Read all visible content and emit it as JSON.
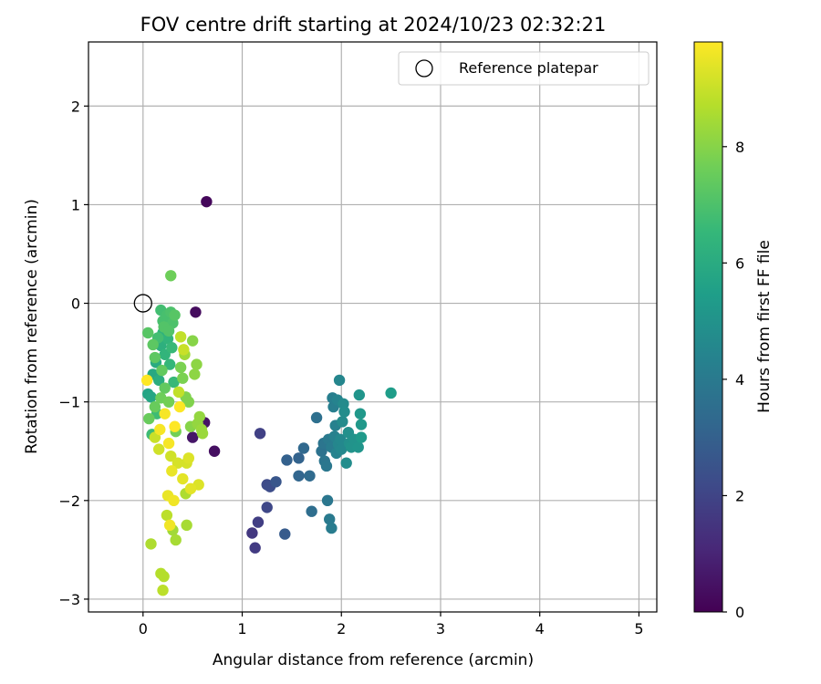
{
  "chart_data": {
    "type": "scatter",
    "title": "FOV centre drift starting at 2024/10/23 02:32:21",
    "xlabel": "Angular distance from reference (arcmin)",
    "ylabel": "Rotation from reference (arcmin)",
    "xlim": [
      -0.55,
      5.18
    ],
    "ylim": [
      -3.13,
      2.65
    ],
    "xticks": [
      0,
      1,
      2,
      3,
      4,
      5
    ],
    "yticks": [
      -3,
      -2,
      -1,
      0,
      1,
      2
    ],
    "grid": true,
    "legend": {
      "placement": "upper right",
      "entries": [
        "Reference platepar"
      ]
    },
    "reference_point": {
      "x": 0,
      "y": 0,
      "label": "Reference platepar",
      "marker": "open-circle"
    },
    "colorbar": {
      "label": "Hours from first FF file",
      "colormap": "viridis",
      "range": [
        0,
        9.8
      ],
      "ticks": [
        0,
        2,
        4,
        6,
        8
      ]
    },
    "series": [
      {
        "points": [
          [
            0.64,
            1.03,
            0.2
          ],
          [
            0.53,
            -0.09,
            0.3
          ],
          [
            0.72,
            -1.5,
            0.4
          ],
          [
            0.62,
            -1.21,
            0.5
          ],
          [
            0.5,
            -1.36,
            0.6
          ],
          [
            1.1,
            -2.33,
            1.6
          ],
          [
            1.13,
            -2.48,
            1.7
          ],
          [
            1.16,
            -2.22,
            1.8
          ],
          [
            1.18,
            -1.32,
            1.9
          ],
          [
            1.25,
            -2.07,
            2.1
          ],
          [
            1.25,
            -1.84,
            2.2
          ],
          [
            1.28,
            -1.86,
            2.3
          ],
          [
            1.34,
            -1.81,
            2.6
          ],
          [
            1.43,
            -2.34,
            2.8
          ],
          [
            1.45,
            -1.59,
            3.0
          ],
          [
            1.57,
            -1.57,
            3.1
          ],
          [
            1.57,
            -1.75,
            3.2
          ],
          [
            1.62,
            -1.47,
            3.3
          ],
          [
            1.68,
            -1.75,
            3.4
          ],
          [
            1.7,
            -2.11,
            3.5
          ],
          [
            1.75,
            -1.16,
            3.6
          ],
          [
            1.8,
            -1.5,
            3.7
          ],
          [
            1.82,
            -1.42,
            3.8
          ],
          [
            1.83,
            -1.6,
            3.8
          ],
          [
            1.85,
            -1.65,
            3.9
          ],
          [
            1.86,
            -2.0,
            3.9
          ],
          [
            1.87,
            -1.38,
            4.0
          ],
          [
            1.88,
            -2.19,
            4.0
          ],
          [
            1.9,
            -1.46,
            4.1
          ],
          [
            1.9,
            -2.28,
            4.1
          ],
          [
            1.91,
            -0.96,
            4.2
          ],
          [
            1.92,
            -1.05,
            4.2
          ],
          [
            1.93,
            -1.35,
            4.3
          ],
          [
            1.94,
            -1.24,
            4.3
          ],
          [
            1.95,
            -1.52,
            4.4
          ],
          [
            1.96,
            -0.98,
            4.4
          ],
          [
            1.97,
            -1.43,
            4.5
          ],
          [
            1.98,
            -0.78,
            4.5
          ],
          [
            1.99,
            -1.38,
            4.6
          ],
          [
            2.0,
            -1.48,
            4.6
          ],
          [
            2.01,
            -1.2,
            4.7
          ],
          [
            2.02,
            -1.02,
            4.7
          ],
          [
            2.03,
            -1.1,
            4.8
          ],
          [
            2.05,
            -1.62,
            4.8
          ],
          [
            2.07,
            -1.31,
            4.9
          ],
          [
            2.08,
            -1.42,
            4.9
          ],
          [
            2.1,
            -1.46,
            5.0
          ],
          [
            2.13,
            -1.38,
            5.0
          ],
          [
            2.17,
            -1.46,
            5.1
          ],
          [
            2.18,
            -0.93,
            5.1
          ],
          [
            2.19,
            -1.12,
            5.2
          ],
          [
            2.2,
            -1.23,
            5.2
          ],
          [
            2.2,
            -1.36,
            5.3
          ],
          [
            2.5,
            -0.91,
            5.4
          ],
          [
            0.05,
            -0.92,
            5.7
          ],
          [
            0.08,
            -0.95,
            5.8
          ],
          [
            0.1,
            -0.72,
            5.9
          ],
          [
            0.13,
            -0.6,
            6.0
          ],
          [
            0.16,
            -0.78,
            6.1
          ],
          [
            0.18,
            -0.43,
            6.2
          ],
          [
            0.2,
            -0.3,
            6.3
          ],
          [
            0.22,
            -0.52,
            6.4
          ],
          [
            0.25,
            -0.36,
            6.4
          ],
          [
            0.27,
            -0.62,
            6.5
          ],
          [
            0.29,
            -0.45,
            6.6
          ],
          [
            0.31,
            -0.8,
            6.6
          ],
          [
            0.14,
            -1.12,
            6.7
          ],
          [
            0.09,
            -1.33,
            6.7
          ],
          [
            0.15,
            -0.35,
            6.8
          ],
          [
            0.18,
            -0.07,
            6.8
          ],
          [
            0.2,
            -0.18,
            6.9
          ],
          [
            0.24,
            -0.12,
            6.9
          ],
          [
            0.28,
            -0.09,
            7.0
          ],
          [
            0.3,
            -0.2,
            7.0
          ],
          [
            0.21,
            -0.24,
            7.1
          ],
          [
            0.26,
            -0.28,
            7.1
          ],
          [
            0.32,
            -0.12,
            7.2
          ],
          [
            0.05,
            -0.3,
            7.2
          ],
          [
            0.1,
            -0.42,
            7.3
          ],
          [
            0.12,
            -0.55,
            7.3
          ],
          [
            0.19,
            -0.68,
            7.4
          ],
          [
            0.22,
            -0.86,
            7.4
          ],
          [
            0.06,
            -1.17,
            7.5
          ],
          [
            0.12,
            -1.05,
            7.5
          ],
          [
            0.28,
            0.28,
            7.6
          ],
          [
            0.18,
            -0.96,
            7.6
          ],
          [
            0.26,
            -1.0,
            7.7
          ],
          [
            0.33,
            -1.3,
            7.7
          ],
          [
            0.38,
            -0.65,
            7.8
          ],
          [
            0.4,
            -0.76,
            7.8
          ],
          [
            0.43,
            -0.95,
            7.9
          ],
          [
            0.46,
            -1.0,
            7.9
          ],
          [
            0.48,
            -1.25,
            8.0
          ],
          [
            0.5,
            -0.38,
            8.0
          ],
          [
            0.52,
            -0.72,
            8.1
          ],
          [
            0.54,
            -0.62,
            8.1
          ],
          [
            0.55,
            -1.22,
            8.2
          ],
          [
            0.57,
            -1.15,
            8.2
          ],
          [
            0.59,
            -1.28,
            8.3
          ],
          [
            0.6,
            -1.32,
            8.3
          ],
          [
            0.42,
            -0.52,
            8.4
          ],
          [
            0.3,
            -2.3,
            8.4
          ],
          [
            0.33,
            -2.4,
            8.5
          ],
          [
            0.44,
            -2.25,
            8.5
          ],
          [
            0.43,
            -1.93,
            8.6
          ],
          [
            0.08,
            -2.44,
            8.6
          ],
          [
            0.21,
            -2.77,
            8.7
          ],
          [
            0.18,
            -2.74,
            8.7
          ],
          [
            0.2,
            -2.91,
            8.8
          ],
          [
            0.24,
            -2.15,
            8.8
          ],
          [
            0.36,
            -0.9,
            8.9
          ],
          [
            0.38,
            -0.34,
            8.9
          ],
          [
            0.41,
            -0.47,
            9.0
          ],
          [
            0.12,
            -1.36,
            9.0
          ],
          [
            0.16,
            -1.48,
            9.1
          ],
          [
            0.28,
            -1.55,
            9.1
          ],
          [
            0.35,
            -1.62,
            9.2
          ],
          [
            0.44,
            -1.62,
            9.2
          ],
          [
            0.46,
            -1.57,
            9.3
          ],
          [
            0.56,
            -1.84,
            9.3
          ],
          [
            0.48,
            -1.88,
            9.4
          ],
          [
            0.4,
            -1.78,
            9.4
          ],
          [
            0.29,
            -1.7,
            9.5
          ],
          [
            0.25,
            -1.95,
            9.5
          ],
          [
            0.31,
            -2.0,
            9.6
          ],
          [
            0.27,
            -2.25,
            9.6
          ],
          [
            0.22,
            -1.12,
            9.7
          ],
          [
            0.17,
            -1.28,
            9.7
          ],
          [
            0.26,
            -1.42,
            9.7
          ],
          [
            0.32,
            -1.25,
            9.8
          ],
          [
            0.37,
            -1.05,
            9.8
          ],
          [
            0.04,
            -0.78,
            9.8
          ]
        ]
      }
    ]
  }
}
